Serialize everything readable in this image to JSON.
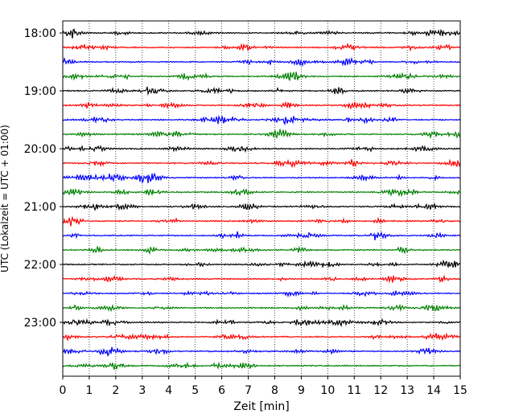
{
  "chart_data": {
    "type": "line",
    "title": "",
    "xlabel": "Zeit  [min]",
    "ylabel": "UTC (Lokalzeit = UTC + 01:00)",
    "xlim": [
      0,
      15
    ],
    "x_ticks": [
      "0",
      "1",
      "2",
      "3",
      "4",
      "5",
      "6",
      "7",
      "8",
      "9",
      "10",
      "11",
      "12",
      "13",
      "14",
      "15"
    ],
    "y_ticks": [
      "18:00",
      "19:00",
      "20:00",
      "21:00",
      "22:00",
      "23:00"
    ],
    "grid": "vertical dotted",
    "legend": "none",
    "rows_per_hour": 4,
    "row_start_times": [
      "18:00",
      "18:15",
      "18:30",
      "18:45",
      "19:00",
      "19:15",
      "19:30",
      "19:45",
      "20:00",
      "20:15",
      "20:30",
      "20:45",
      "21:00",
      "21:15",
      "21:30",
      "21:45",
      "22:00",
      "22:15",
      "22:30",
      "22:45",
      "23:00",
      "23:15",
      "23:30",
      "23:45"
    ],
    "trace_colors": [
      "#000000",
      "#ff0000",
      "#0000ff",
      "#008000"
    ]
  }
}
